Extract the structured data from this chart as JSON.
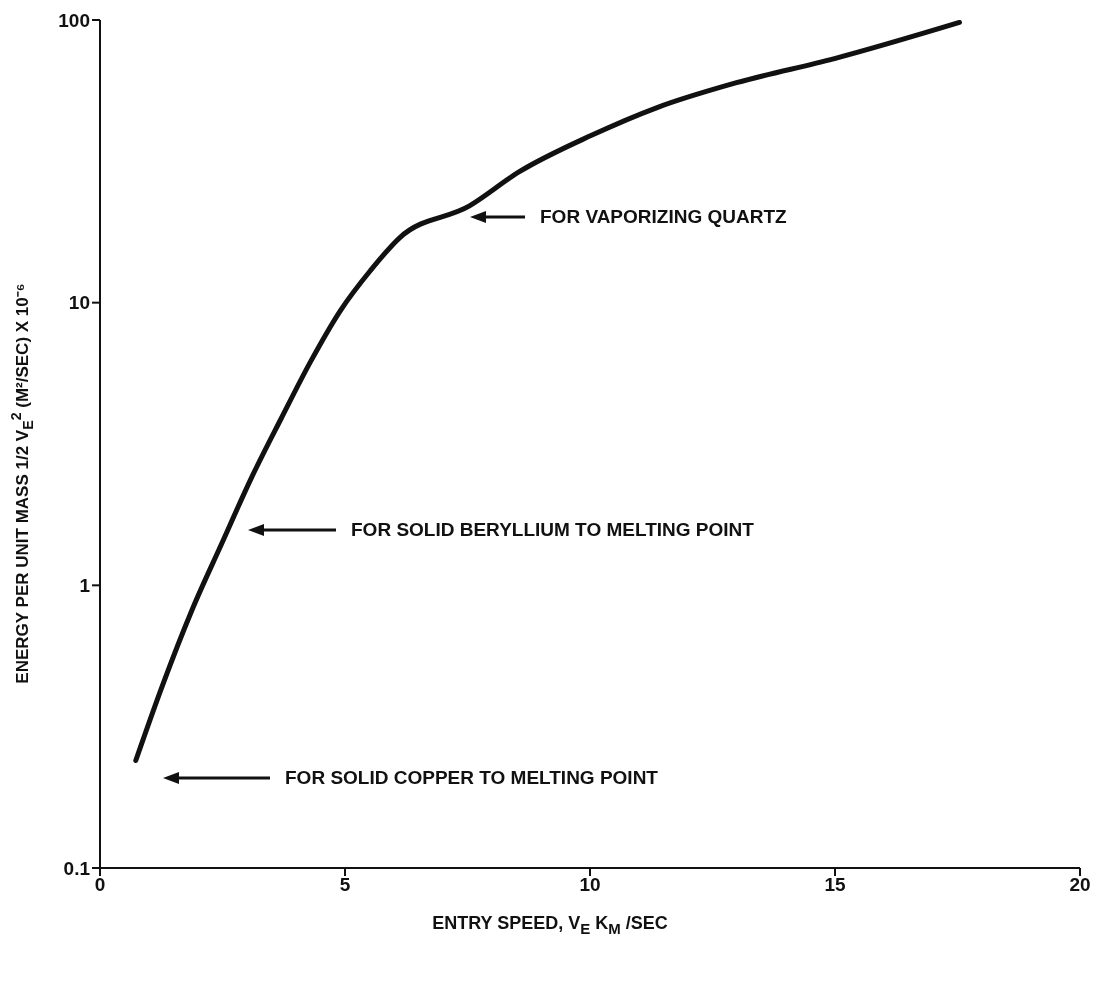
{
  "chart_data": {
    "type": "line",
    "xlabel": "ENTRY SPEED, V$_{E}$  K$_{M}$ /SEC",
    "ylabel": "ENERGY PER UNIT MASS 1/2  V$_{E}$$^{2}$ (M²/SEC) X 10⁻⁶",
    "x": [
      0.73,
      1.27,
      1.88,
      2.48,
      3.09,
      3.7,
      4.3,
      4.91,
      5.52,
      6.12,
      7.54,
      8.55,
      10.02,
      11.37,
      12.99,
      14.99,
      17.54
    ],
    "series": [
      {
        "color": "#111111",
        "values": [
          0.24,
          0.44,
          0.82,
          1.4,
          2.4,
          3.9,
          6.2,
          9.4,
          13,
          17,
          22,
          29,
          39,
          49,
          60,
          73,
          98
        ]
      }
    ],
    "xlim": [
      0,
      20
    ],
    "xticks": [
      0,
      5,
      10,
      15,
      20
    ],
    "ylim": [
      0.1,
      100
    ],
    "yticks": [
      0.1,
      1,
      10,
      100
    ],
    "log": true,
    "grid": false,
    "legend": false,
    "marker": "none",
    "line_style": "solid",
    "annotations": [
      "FOR VAPORIZING QUARTZ",
      "FOR SOLID BERYLLIUM TO MELTING POINT",
      "FOR SOLID COPPER TO MELTING POINT"
    ]
  }
}
